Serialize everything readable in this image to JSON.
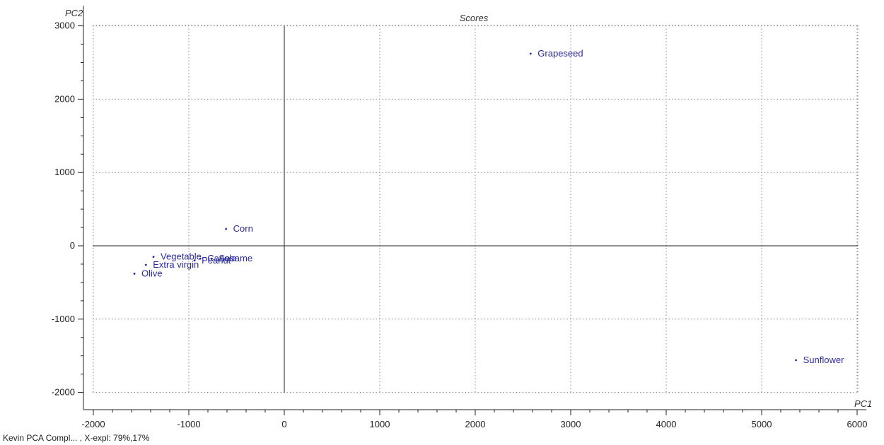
{
  "chart_data": {
    "type": "scatter",
    "title": "Scores",
    "xlabel": "PC1",
    "ylabel": "PC2",
    "xlim": [
      -2300,
      6050
    ],
    "ylim": [
      -2150,
      3150
    ],
    "xticks": [
      -2000,
      -1000,
      0,
      1000,
      2000,
      3000,
      4000,
      5000,
      6000
    ],
    "yticks": [
      -2000,
      -1000,
      0,
      1000,
      2000,
      3000
    ],
    "grid": true,
    "points": [
      {
        "label": "Grapeseed",
        "x": 2580,
        "y": 2620
      },
      {
        "label": "Corn",
        "x": -610,
        "y": 230
      },
      {
        "label": "Vegetable",
        "x": -1370,
        "y": -150
      },
      {
        "label": "Canola",
        "x": -880,
        "y": -175
      },
      {
        "label": "Sesame",
        "x": -760,
        "y": -175
      },
      {
        "label": "Peanut",
        "x": -940,
        "y": -200
      },
      {
        "label": "Extra virgin",
        "x": -1450,
        "y": -260
      },
      {
        "label": "Olive",
        "x": -1570,
        "y": -380
      },
      {
        "label": "Sunflower",
        "x": 5360,
        "y": -1560
      }
    ],
    "colors": {
      "points": "#2a2a9a",
      "axes": "#222222",
      "grid": "#888888"
    }
  },
  "footer": "Kevin PCA Compl... , X-expl: 79%,17%"
}
